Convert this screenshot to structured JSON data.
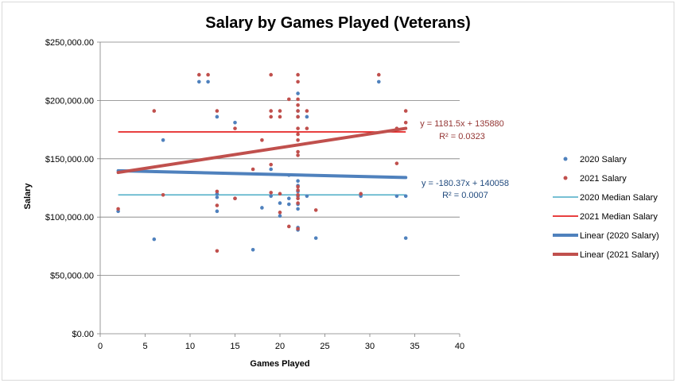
{
  "colors": {
    "s2020": "#4f81bd",
    "s2021": "#c0504d",
    "median2020": "#4bacc6",
    "median2021": "#e00000",
    "trend2020": "#4f81bd",
    "trend2021": "#c0504d",
    "grid": "#7f7f7f",
    "annot2020": "#1f497d",
    "annot2021": "#943634"
  },
  "chart_data": {
    "type": "scatter",
    "title": "Salary by Games Played (Veterans)",
    "xlabel": "Games Played",
    "ylabel": "Salary",
    "xlim": [
      0,
      40
    ],
    "ylim": [
      0,
      250000
    ],
    "x_ticks": [
      "0",
      "5",
      "10",
      "15",
      "20",
      "25",
      "30",
      "35",
      "40"
    ],
    "x_tick_values": [
      0,
      5,
      10,
      15,
      20,
      25,
      30,
      35,
      40
    ],
    "y_ticks": [
      "$0.00",
      "$50,000.00",
      "$100,000.00",
      "$150,000.00",
      "$200,000.00",
      "$250,000.00"
    ],
    "y_tick_values": [
      0,
      50000,
      100000,
      150000,
      200000,
      250000
    ],
    "grid": "horizontal",
    "legend_position": "right",
    "series": [
      {
        "name": "2020 Salary",
        "kind": "scatter",
        "points": [
          [
            2,
            105000
          ],
          [
            6,
            81000
          ],
          [
            7,
            166000
          ],
          [
            11,
            216000
          ],
          [
            12,
            216000
          ],
          [
            13,
            186000
          ],
          [
            13,
            120000
          ],
          [
            13,
            117000
          ],
          [
            13,
            105000
          ],
          [
            15,
            181000
          ],
          [
            15,
            116000
          ],
          [
            17,
            72000
          ],
          [
            18,
            108000
          ],
          [
            19,
            141000
          ],
          [
            19,
            118000
          ],
          [
            20,
            112000
          ],
          [
            20,
            101000
          ],
          [
            21,
            136000
          ],
          [
            21,
            116000
          ],
          [
            21,
            111000
          ],
          [
            22,
            206000
          ],
          [
            22,
            191000
          ],
          [
            22,
            186000
          ],
          [
            22,
            131000
          ],
          [
            22,
            127000
          ],
          [
            22,
            122000
          ],
          [
            22,
            118000
          ],
          [
            22,
            111000
          ],
          [
            22,
            107000
          ],
          [
            22,
            91000
          ],
          [
            22,
            89000
          ],
          [
            23,
            186000
          ],
          [
            23,
            118000
          ],
          [
            24,
            82000
          ],
          [
            29,
            118000
          ],
          [
            31,
            216000
          ],
          [
            33,
            118000
          ],
          [
            34,
            118000
          ],
          [
            34,
            82000
          ]
        ]
      },
      {
        "name": "2021 Salary",
        "kind": "scatter",
        "points": [
          [
            2,
            107000
          ],
          [
            6,
            191000
          ],
          [
            7,
            119000
          ],
          [
            11,
            222000
          ],
          [
            12,
            222000
          ],
          [
            13,
            191000
          ],
          [
            13,
            122000
          ],
          [
            13,
            110000
          ],
          [
            13,
            71000
          ],
          [
            15,
            176000
          ],
          [
            15,
            116000
          ],
          [
            17,
            141000
          ],
          [
            18,
            166000
          ],
          [
            19,
            222000
          ],
          [
            19,
            191000
          ],
          [
            19,
            186000
          ],
          [
            19,
            145000
          ],
          [
            19,
            121000
          ],
          [
            20,
            191000
          ],
          [
            20,
            186000
          ],
          [
            20,
            120000
          ],
          [
            20,
            104000
          ],
          [
            21,
            201000
          ],
          [
            21,
            92000
          ],
          [
            22,
            222000
          ],
          [
            22,
            216000
          ],
          [
            22,
            201000
          ],
          [
            22,
            196000
          ],
          [
            22,
            191000
          ],
          [
            22,
            186000
          ],
          [
            22,
            176000
          ],
          [
            22,
            171000
          ],
          [
            22,
            166000
          ],
          [
            22,
            156000
          ],
          [
            22,
            153000
          ],
          [
            22,
            126000
          ],
          [
            22,
            123000
          ],
          [
            22,
            119000
          ],
          [
            22,
            116000
          ],
          [
            22,
            112000
          ],
          [
            22,
            90000
          ],
          [
            23,
            191000
          ],
          [
            23,
            176000
          ],
          [
            24,
            106000
          ],
          [
            29,
            120000
          ],
          [
            31,
            222000
          ],
          [
            33,
            176000
          ],
          [
            33,
            146000
          ],
          [
            34,
            191000
          ],
          [
            34,
            181000
          ]
        ]
      },
      {
        "name": "2020 Median Salary",
        "kind": "hline",
        "value": 119000,
        "x": [
          2,
          34
        ]
      },
      {
        "name": "2021 Median Salary",
        "kind": "hline",
        "value": 173000,
        "x": [
          2,
          34
        ]
      },
      {
        "name": "Linear (2020 Salary)",
        "kind": "trend",
        "slope": -180.37,
        "intercept": 140058,
        "x": [
          2,
          34
        ]
      },
      {
        "name": "Linear (2021 Salary)",
        "kind": "trend",
        "slope": 1181.5,
        "intercept": 135880,
        "x": [
          2,
          34
        ]
      }
    ],
    "annotations": {
      "eq2021": "y = 1181.5x + 135880",
      "r2_2021": "R² = 0.0323",
      "eq2020": "y = -180.37x + 140058",
      "r2_2020": "R² = 0.0007"
    }
  }
}
